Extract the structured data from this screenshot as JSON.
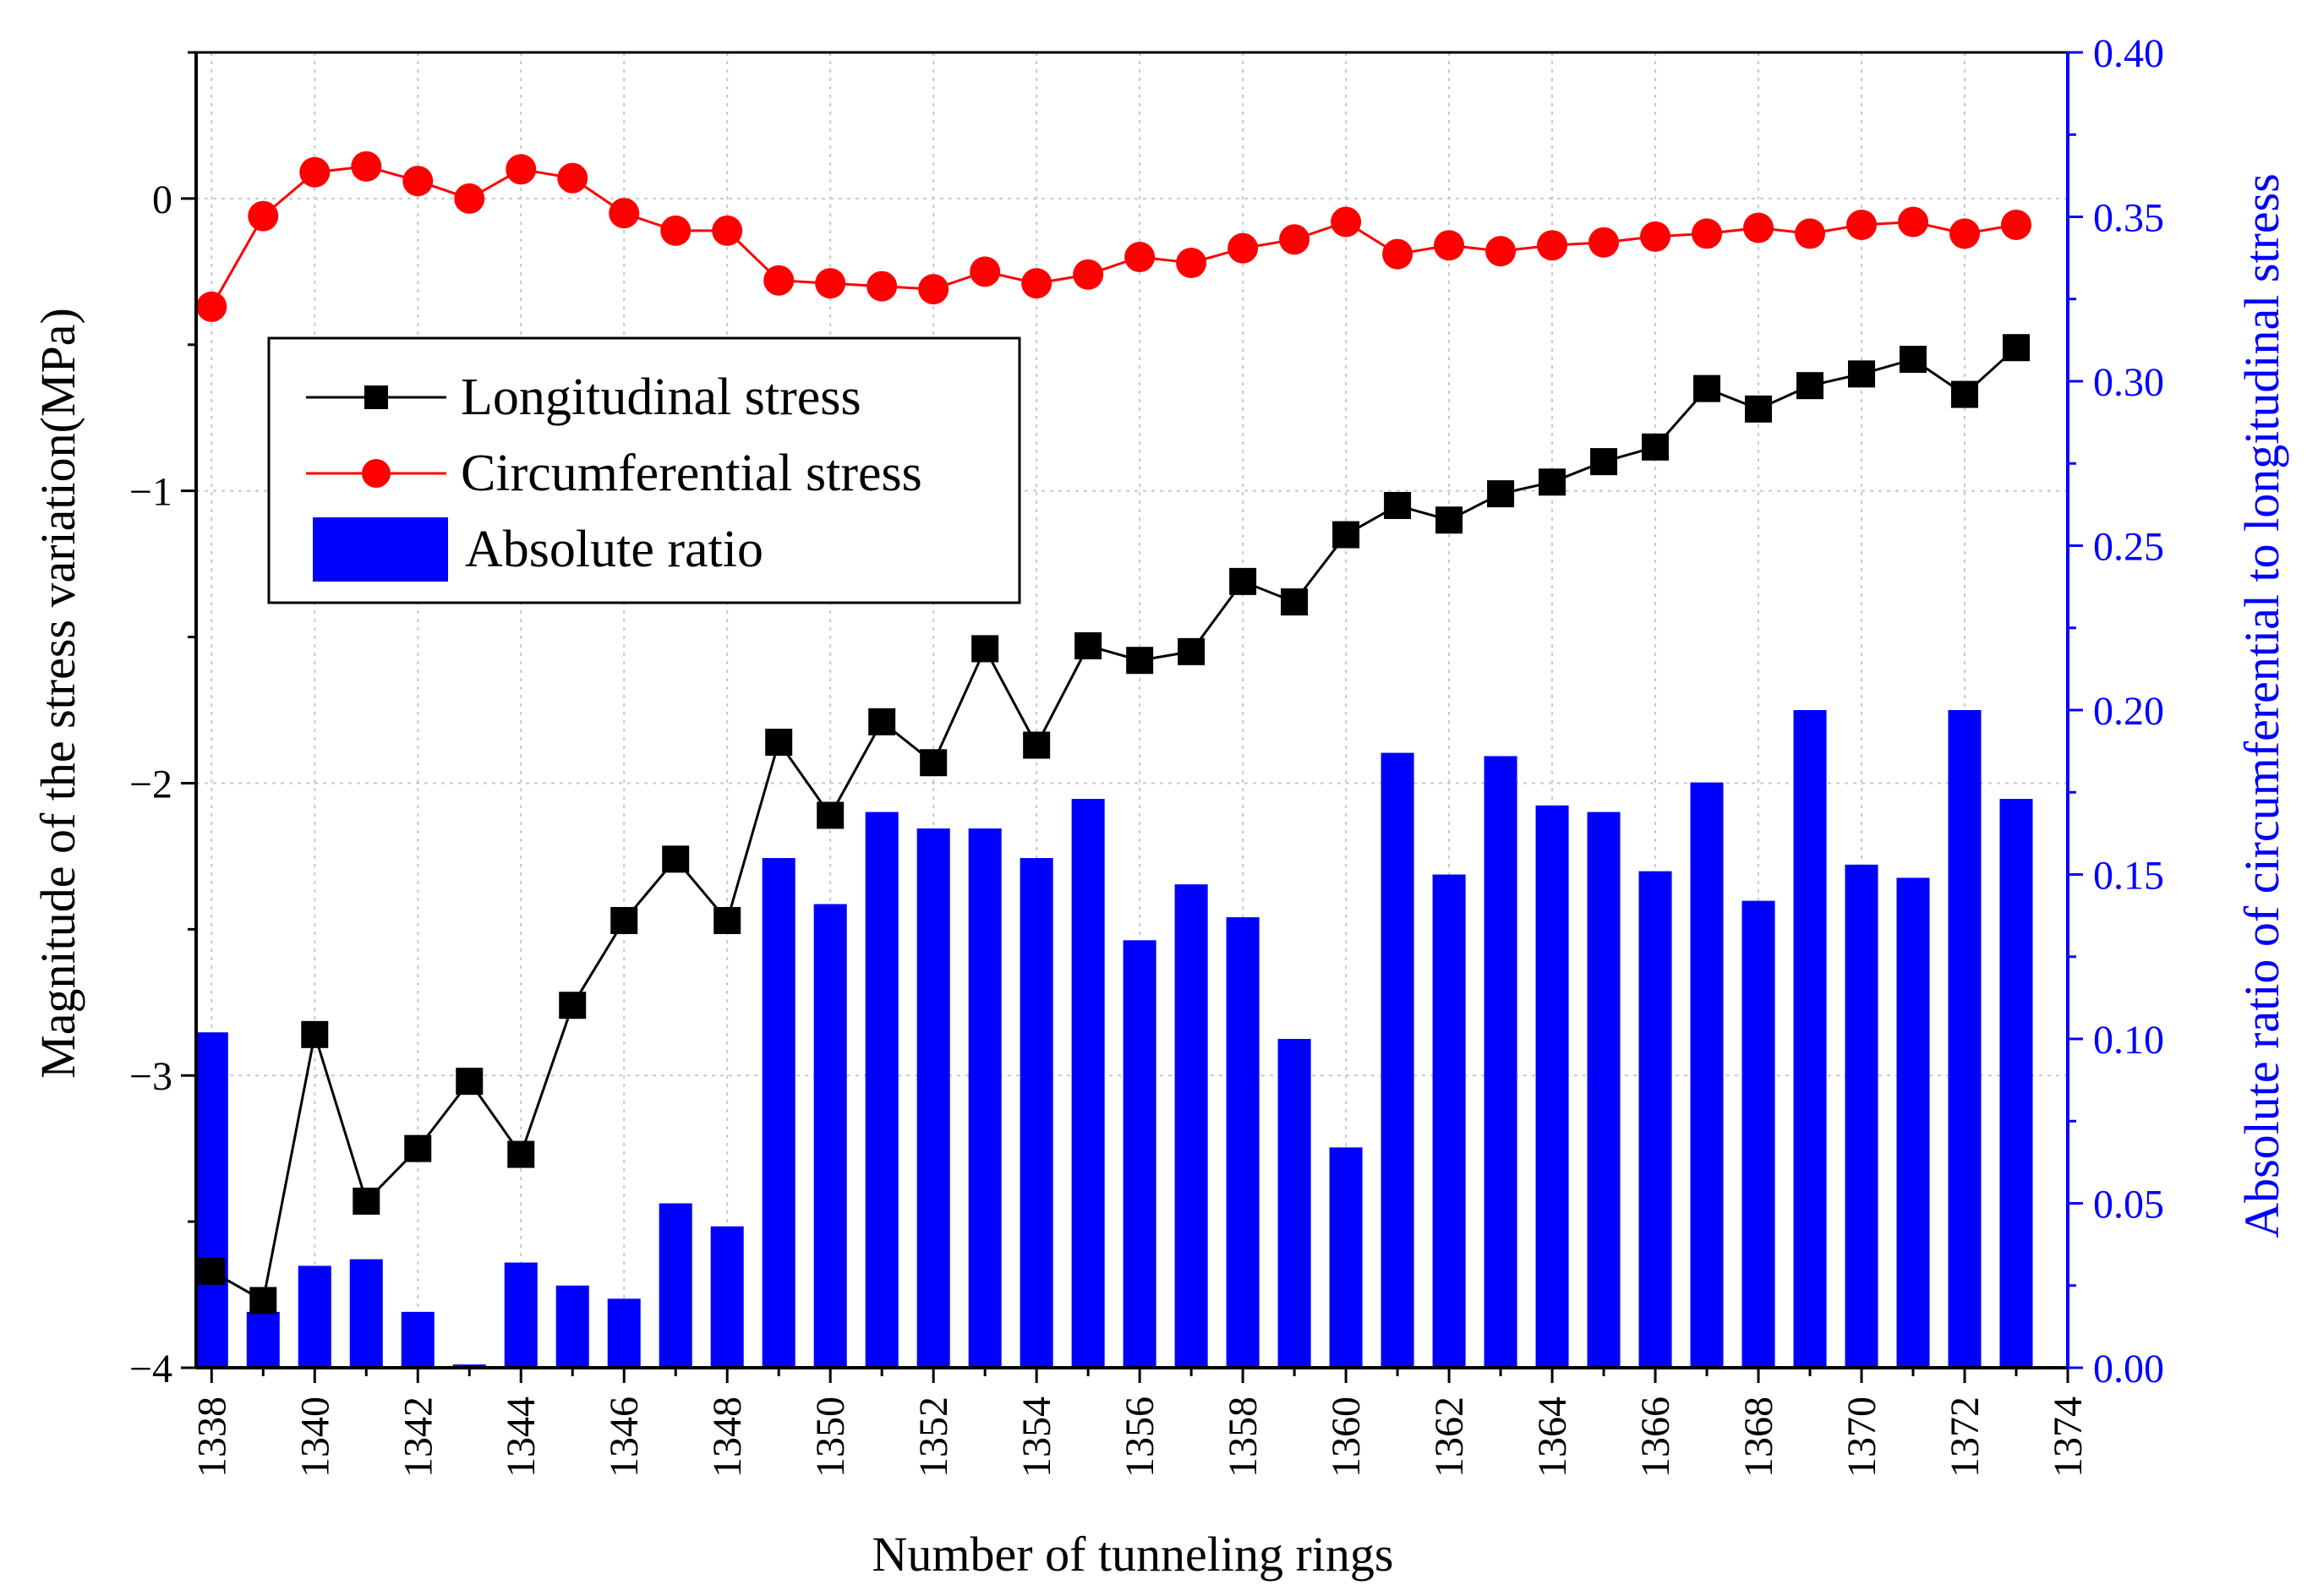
{
  "chart_data": {
    "type": "bar+line",
    "xlabel": "Number of tunneling rings",
    "ylabel_left": "Magnitude of the stress variation(MPa)",
    "ylabel_right": "Absolute ratio of circumferential to longitudinal stress",
    "xlim": [
      1337.7,
      1374
    ],
    "ylim_left": [
      -4,
      0.5
    ],
    "ylim_right": [
      0,
      0.4
    ],
    "x_ticks": [
      "1338",
      "1340",
      "1342",
      "1344",
      "1346",
      "1348",
      "1350",
      "1352",
      "1354",
      "1356",
      "1358",
      "1360",
      "1362",
      "1364",
      "1366",
      "1368",
      "1370",
      "1372",
      "1374"
    ],
    "y_left_ticks": [
      "−4",
      "−3",
      "−2",
      "−1",
      "0"
    ],
    "y_right_ticks": [
      "0.00",
      "0.05",
      "0.10",
      "0.15",
      "0.20",
      "0.25",
      "0.30",
      "0.35",
      "0.40"
    ],
    "grid": true,
    "legend": {
      "position": "upper-left",
      "entries": [
        "Longitudinal stress",
        "Circumferential stress",
        "Absolute ratio"
      ]
    },
    "x": [
      1338,
      1339,
      1340,
      1341,
      1342,
      1343,
      1344,
      1345,
      1346,
      1347,
      1348,
      1349,
      1350,
      1351,
      1352,
      1353,
      1354,
      1355,
      1356,
      1357,
      1358,
      1359,
      1360,
      1361,
      1362,
      1363,
      1364,
      1365,
      1366,
      1367,
      1368,
      1369,
      1370,
      1371,
      1372,
      1373
    ],
    "series": [
      {
        "name": "Longitudinal stress",
        "axis": "left",
        "kind": "line",
        "marker": "square",
        "color": "#000000",
        "values": [
          -3.67,
          -3.77,
          -2.86,
          -3.43,
          -3.25,
          -3.02,
          -3.27,
          -2.76,
          -2.47,
          -2.26,
          -2.47,
          -1.86,
          -2.11,
          -1.79,
          -1.93,
          -1.54,
          -1.87,
          -1.53,
          -1.58,
          -1.55,
          -1.31,
          -1.38,
          -1.15,
          -1.05,
          -1.1,
          -1.01,
          -0.97,
          -0.9,
          -0.85,
          -0.65,
          -0.72,
          -0.64,
          -0.6,
          -0.55,
          -0.67,
          -0.51
        ]
      },
      {
        "name": "Circumferential stress",
        "axis": "left",
        "kind": "line",
        "marker": "circle",
        "color": "#ff0000",
        "values": [
          -0.37,
          -0.06,
          0.09,
          0.11,
          0.06,
          0.0,
          0.1,
          0.07,
          -0.05,
          -0.11,
          -0.11,
          -0.28,
          -0.29,
          -0.3,
          -0.31,
          -0.25,
          -0.29,
          -0.26,
          -0.2,
          -0.22,
          -0.17,
          -0.14,
          -0.08,
          -0.19,
          -0.16,
          -0.18,
          -0.16,
          -0.15,
          -0.13,
          -0.12,
          -0.1,
          -0.12,
          -0.09,
          -0.08,
          -0.12,
          -0.09
        ]
      },
      {
        "name": "Absolute ratio",
        "axis": "right",
        "kind": "bar",
        "color": "#0000ff",
        "values": [
          0.102,
          0.017,
          0.031,
          0.033,
          0.017,
          0.001,
          0.032,
          0.025,
          0.021,
          0.05,
          0.043,
          0.155,
          0.141,
          0.169,
          0.164,
          0.164,
          0.155,
          0.173,
          0.13,
          0.147,
          0.137,
          0.1,
          0.067,
          0.187,
          0.15,
          0.186,
          0.171,
          0.169,
          0.151,
          0.178,
          0.142,
          0.2,
          0.153,
          0.149,
          0.2,
          0.173
        ]
      }
    ]
  }
}
